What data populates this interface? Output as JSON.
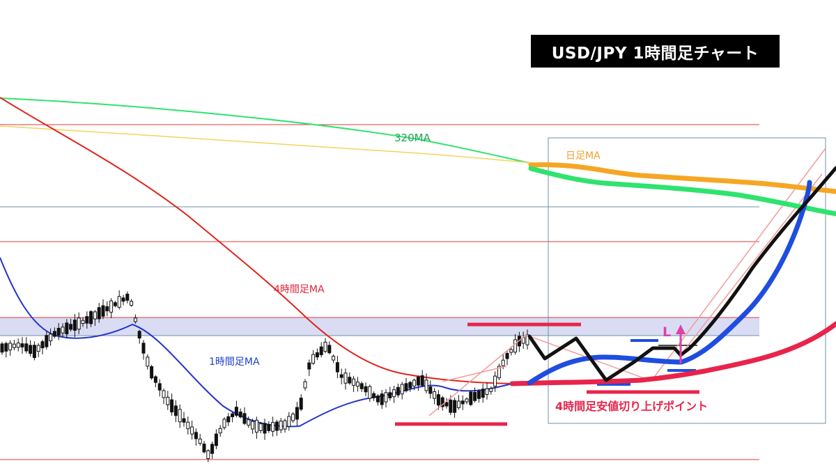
{
  "title": "USD/JPY  1時間足チャート",
  "labels": {
    "ma320": "320MA",
    "daily_ma": "日足MA",
    "h4_ma": "4時間足MA",
    "h1_ma": "1時間足MA",
    "h4_low_point": "4時間足安値切り上げポイント",
    "low_marker": "L"
  },
  "colors": {
    "ma320": "#2fe36e",
    "daily_ma": "#f5a623",
    "h4_ma": "#e0241c",
    "h1_ma": "#2233c8",
    "yellow_ma": "#f2d45a",
    "forecast_black": "#111111",
    "forecast_blue": "#1e4de0",
    "forecast_red": "#e8244a",
    "zone_band": "#d7daf3",
    "channel": "#f29a9a",
    "marker_magenta": "#e040a8"
  },
  "chart_data": {
    "type": "candlestick",
    "symbol": "USD/JPY",
    "timeframe": "1時間足",
    "series": [
      {
        "name": "320MA",
        "kind": "moving-average"
      },
      {
        "name": "日足MA",
        "kind": "moving-average"
      },
      {
        "name": "4時間足MA",
        "kind": "moving-average"
      },
      {
        "name": "1時間足MA",
        "kind": "moving-average"
      }
    ],
    "annotations": [
      "4時間足安値切り上げポイント",
      "L"
    ]
  }
}
